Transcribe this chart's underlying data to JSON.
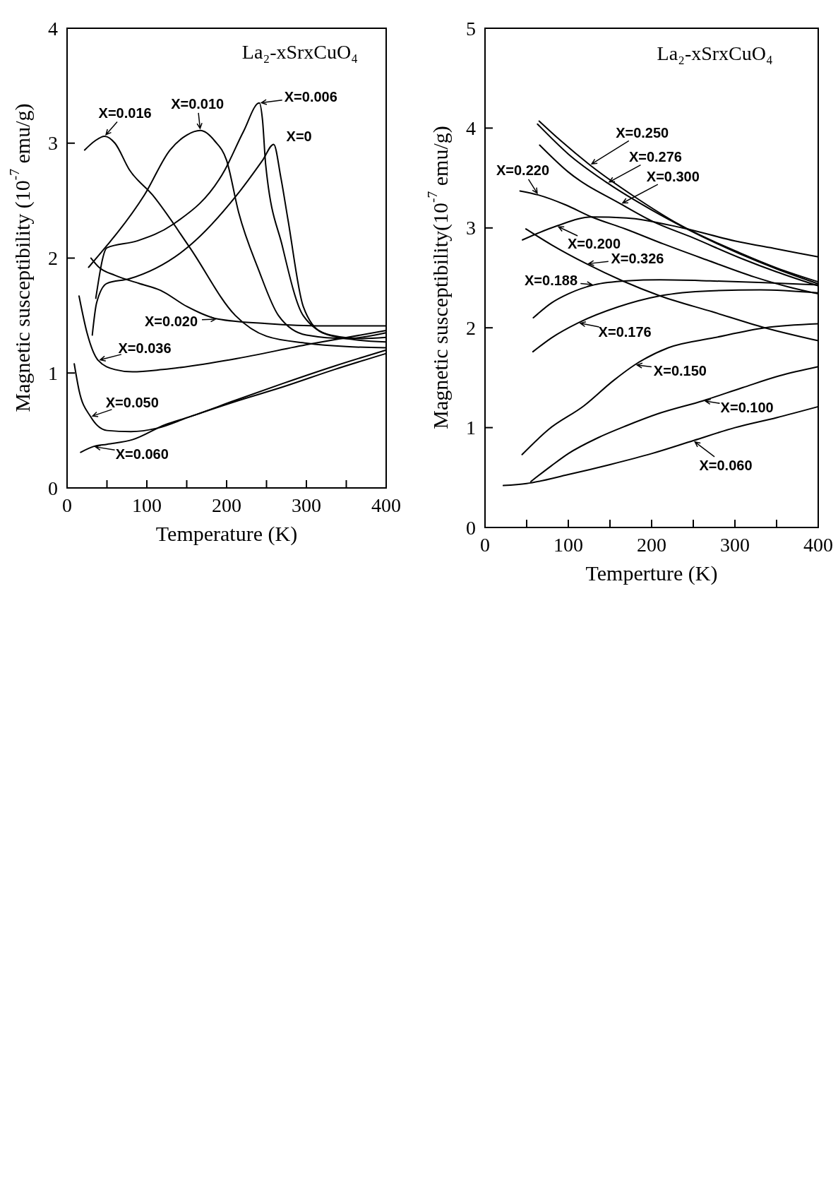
{
  "chart_data": [
    {
      "type": "line",
      "xlabel": "Temperature (K)",
      "ylabel": "Magnetic susceptibility (10$^{-7}$ emu/g)",
      "annotations": [
        "La₂-xSrxCuO₄",
        {
          "text": "X=0",
          "x": 259,
          "y": 2.99
        },
        {
          "text": "X=0.006",
          "x": 241,
          "y": 3.35
        },
        {
          "text": "X=0.010",
          "x": 167,
          "y": 3.11
        },
        {
          "text": "X=0.016",
          "x": 47,
          "y": 3.06
        },
        {
          "text": "X=0.020",
          "x": 189,
          "y": 1.47
        },
        {
          "text": "X=0.036",
          "x": 39,
          "y": 1.11
        },
        {
          "text": "X=0.050",
          "x": 29.5,
          "y": 0.62
        },
        {
          "text": "X=0.060",
          "x": 33,
          "y": 0.36
        }
      ],
      "xlim": [
        0,
        400
      ],
      "ylim": [
        0,
        4
      ],
      "xticks": [
        0,
        {
          "value": 50,
          "label": null
        },
        100,
        {
          "value": 150,
          "label": null
        },
        200,
        {
          "value": 250,
          "label": null
        },
        300,
        {
          "value": 350,
          "label": null
        },
        400
      ],
      "yticks": [
        0,
        1,
        2,
        3,
        4
      ],
      "series": [
        {
          "color": "#000000",
          "x": [
            31.6,
            37,
            50,
            78,
            154,
            213,
            245,
            259,
            268,
            277,
            296,
            320,
            360,
            400
          ],
          "values": [
            1.33,
            1.61,
            1.78,
            1.82,
            2.11,
            2.55,
            2.85,
            2.99,
            2.7,
            2.33,
            1.58,
            1.35,
            1.29,
            1.27
          ]
        },
        {
          "color": "#000000",
          "x": [
            36,
            50,
            88,
            132,
            198,
            221,
            241,
            245,
            249,
            270,
            296,
            330,
            370,
            400
          ],
          "values": [
            1.65,
            2.09,
            2.15,
            2.29,
            2.77,
            3.1,
            3.35,
            3.2,
            2.81,
            2.1,
            1.5,
            1.33,
            1.3,
            1.31
          ]
        },
        {
          "color": "#000000",
          "x": [
            27,
            50,
            63,
            97,
            129,
            150,
            167,
            185,
            200,
            215,
            240,
            265,
            300,
            350,
            400
          ],
          "values": [
            1.92,
            2.11,
            2.22,
            2.55,
            2.94,
            3.07,
            3.11,
            3.02,
            2.85,
            2.4,
            1.9,
            1.5,
            1.33,
            1.3,
            1.35
          ]
        },
        {
          "color": "#000000",
          "x": [
            22,
            35,
            47,
            60,
            78,
            107,
            154,
            211,
            250,
            300,
            350,
            400
          ],
          "values": [
            2.94,
            3.02,
            3.06,
            3.0,
            2.77,
            2.55,
            2.09,
            1.5,
            1.32,
            1.26,
            1.23,
            1.22
          ]
        },
        {
          "color": "#000000",
          "x": [
            30,
            40,
            60,
            90,
            117,
            150,
            189,
            250,
            320,
            400
          ],
          "values": [
            2.0,
            1.92,
            1.85,
            1.78,
            1.72,
            1.58,
            1.47,
            1.43,
            1.41,
            1.41
          ]
        },
        {
          "color": "#000000",
          "x": [
            15,
            25,
            39,
            60,
            82,
            120,
            208,
            303,
            400
          ],
          "values": [
            1.67,
            1.35,
            1.11,
            1.03,
            1.01,
            1.03,
            1.12,
            1.25,
            1.37
          ]
        },
        {
          "color": "#000000",
          "x": [
            9,
            15,
            29.5,
            50,
            80,
            113,
            154,
            210,
            271,
            335,
            400
          ],
          "values": [
            1.08,
            0.85,
            0.62,
            0.5,
            0.49,
            0.52,
            0.62,
            0.75,
            0.88,
            1.03,
            1.17
          ]
        },
        {
          "color": "#000000",
          "x": [
            17,
            33,
            50,
            82,
            123,
            154,
            210,
            271,
            335,
            400
          ],
          "values": [
            0.31,
            0.36,
            0.38,
            0.42,
            0.55,
            0.62,
            0.76,
            0.91,
            1.06,
            1.2
          ]
        }
      ]
    },
    {
      "type": "line",
      "xlabel": "Temperture (K)",
      "ylabel": "Magnetic susceptibility(10$^{-7}$ emu/g)",
      "annotations": [
        "La₂-xSrxCuO₄",
        {
          "text": "X=0.060",
          "x": 250,
          "y": 0.87
        },
        {
          "text": "X=0.100",
          "x": 262,
          "y": 1.27
        },
        {
          "text": "X=0.150",
          "x": 180,
          "y": 1.63
        },
        {
          "text": "X=0.176",
          "x": 112,
          "y": 2.05
        },
        {
          "text": "X=0.188",
          "x": 131,
          "y": 2.43
        },
        {
          "text": "X=0.200",
          "x": 86,
          "y": 3.02
        },
        {
          "text": "X=0.220",
          "x": 64,
          "y": 3.33
        },
        {
          "text": "X=0.250",
          "x": 126,
          "y": 3.63
        },
        {
          "text": "X=0.276",
          "x": 147,
          "y": 3.45
        },
        {
          "text": "X=0.300",
          "x": 163,
          "y": 3.24
        },
        {
          "text": "X=0.326",
          "x": 122,
          "y": 2.64
        }
      ],
      "xlim": [
        0,
        400
      ],
      "ylim": [
        0,
        5
      ],
      "xticks": [
        0,
        {
          "value": 50,
          "label": null
        },
        100,
        {
          "value": 150,
          "label": null
        },
        200,
        {
          "value": 250,
          "label": null
        },
        300,
        {
          "value": 350,
          "label": null
        },
        400
      ],
      "yticks": [
        0,
        1,
        2,
        3,
        4,
        5
      ],
      "series": [
        {
          "color": "#000000",
          "x": [
            22,
            50,
            100,
            150,
            200,
            250,
            300,
            350,
            400
          ],
          "values": [
            0.42,
            0.44,
            0.53,
            0.63,
            0.74,
            0.87,
            1.0,
            1.1,
            1.21
          ]
        },
        {
          "color": "#000000",
          "x": [
            55,
            80,
            100,
            136,
            170,
            208,
            262,
            309,
            354,
            400
          ],
          "values": [
            0.46,
            0.62,
            0.74,
            0.9,
            1.02,
            1.14,
            1.27,
            1.4,
            1.52,
            1.61
          ]
        },
        {
          "color": "#000000",
          "x": [
            44.5,
            76,
            119,
            154,
            180,
            220,
            275,
            336,
            400
          ],
          "values": [
            0.73,
            0.98,
            1.22,
            1.47,
            1.63,
            1.8,
            1.9,
            2.0,
            2.04
          ]
        },
        {
          "color": "#000000",
          "x": [
            57.5,
            80,
            112,
            160,
            210,
            270,
            330,
            400
          ],
          "values": [
            1.76,
            1.9,
            2.05,
            2.21,
            2.32,
            2.37,
            2.38,
            2.35
          ]
        },
        {
          "color": "#000000",
          "x": [
            58,
            80,
            100,
            131,
            170,
            210,
            270,
            340,
            400
          ],
          "values": [
            2.1,
            2.25,
            2.34,
            2.43,
            2.47,
            2.48,
            2.47,
            2.45,
            2.43
          ]
        },
        {
          "color": "#000000",
          "x": [
            45,
            86,
            128,
            170,
            237,
            300,
            350,
            400
          ],
          "values": [
            2.88,
            3.02,
            3.11,
            3.1,
            3.0,
            2.87,
            2.79,
            2.71
          ]
        },
        {
          "color": "#000000",
          "x": [
            42,
            64,
            97,
            128,
            168.5,
            214,
            266,
            323,
            364,
            400
          ],
          "values": [
            3.37,
            3.33,
            3.23,
            3.11,
            2.99,
            2.84,
            2.68,
            2.51,
            2.41,
            2.34
          ]
        },
        {
          "color": "#000000",
          "x": [
            65,
            90,
            126,
            180,
            232,
            306,
            350,
            400
          ],
          "values": [
            4.07,
            3.88,
            3.63,
            3.31,
            3.04,
            2.75,
            2.6,
            2.46
          ]
        },
        {
          "color": "#000000",
          "x": [
            63,
            100,
            147,
            200,
            240,
            306,
            350,
            400
          ],
          "values": [
            4.04,
            3.74,
            3.45,
            3.18,
            3.0,
            2.74,
            2.59,
            2.44
          ]
        },
        {
          "color": "#000000",
          "x": [
            65.6,
            100,
            163,
            200,
            250,
            306,
            350,
            400
          ],
          "values": [
            3.83,
            3.56,
            3.24,
            3.07,
            2.9,
            2.7,
            2.56,
            2.42
          ]
        },
        {
          "color": "#000000",
          "x": [
            49,
            80,
            122,
            165,
            210,
            273,
            336,
            400
          ],
          "values": [
            2.99,
            2.83,
            2.64,
            2.47,
            2.32,
            2.16,
            2.0,
            1.87
          ]
        }
      ]
    }
  ]
}
